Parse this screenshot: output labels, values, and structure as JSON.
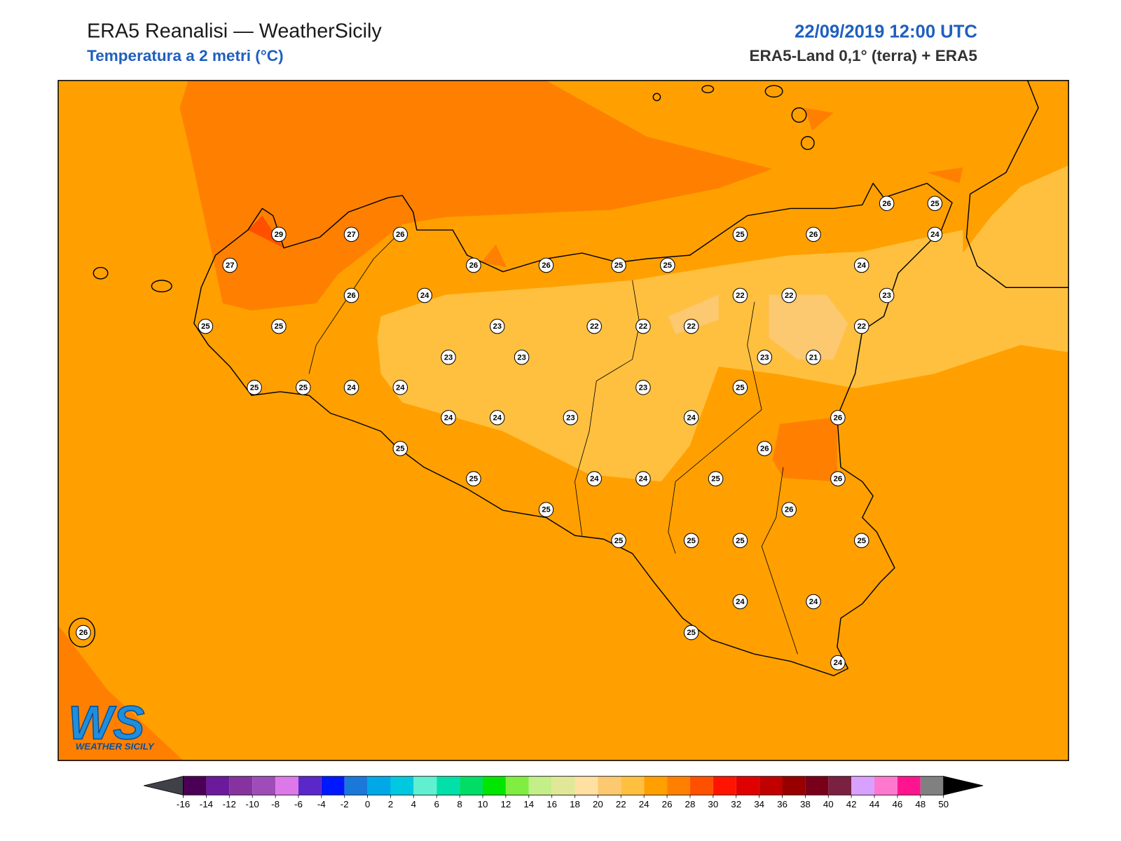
{
  "header": {
    "title": "ERA5 Reanalisi — WeatherSicily",
    "subtitle": "Temperatura a 2 metri (°C)",
    "datetime": "22/09/2019 12:00 UTC",
    "source": "ERA5-Land 0,1° (terra) + ERA5"
  },
  "stations": [
    29,
    27,
    26,
    27,
    26,
    24,
    25,
    25,
    26,
    26,
    25,
    25,
    25,
    26,
    26,
    25,
    24,
    24,
    23,
    22,
    22,
    22,
    22,
    22,
    22,
    23,
    23,
    23,
    23,
    21,
    25,
    25,
    24,
    24,
    23,
    25,
    24,
    24,
    23,
    24,
    26,
    25,
    26,
    25,
    24,
    24,
    25,
    26,
    26,
    25,
    25,
    25,
    25,
    25,
    24,
    24,
    25,
    24,
    26
  ],
  "colorbar": {
    "ticks": [
      -16,
      -14,
      -12,
      -10,
      -8,
      -6,
      -4,
      -2,
      0,
      2,
      4,
      6,
      8,
      10,
      12,
      14,
      16,
      18,
      20,
      22,
      24,
      26,
      28,
      30,
      32,
      34,
      36,
      38,
      40,
      42,
      44,
      46,
      48,
      50
    ],
    "colors": [
      "#4b0055",
      "#6a1a9a",
      "#86339f",
      "#9e4db8",
      "#dc78e8",
      "#5a28c8",
      "#0018ff",
      "#1a78d8",
      "#00a8e8",
      "#00c8e0",
      "#60f0d0",
      "#00e0a8",
      "#00dd66",
      "#00e600",
      "#80ee40",
      "#c4ee88",
      "#e0e898",
      "#ffe0a0",
      "#fcc870",
      "#ffc040",
      "#ffa000",
      "#ff8000",
      "#ff5000",
      "#ff1400",
      "#e00000",
      "#c00000",
      "#980000",
      "#780018",
      "#7a2040",
      "#d8a0ff",
      "#ff78d0",
      "#ff1490",
      "#808080"
    ],
    "under_color": "#404048",
    "over_color": "#000000"
  },
  "logo": {
    "mark": "WS",
    "name": "WEATHER SICILY"
  }
}
